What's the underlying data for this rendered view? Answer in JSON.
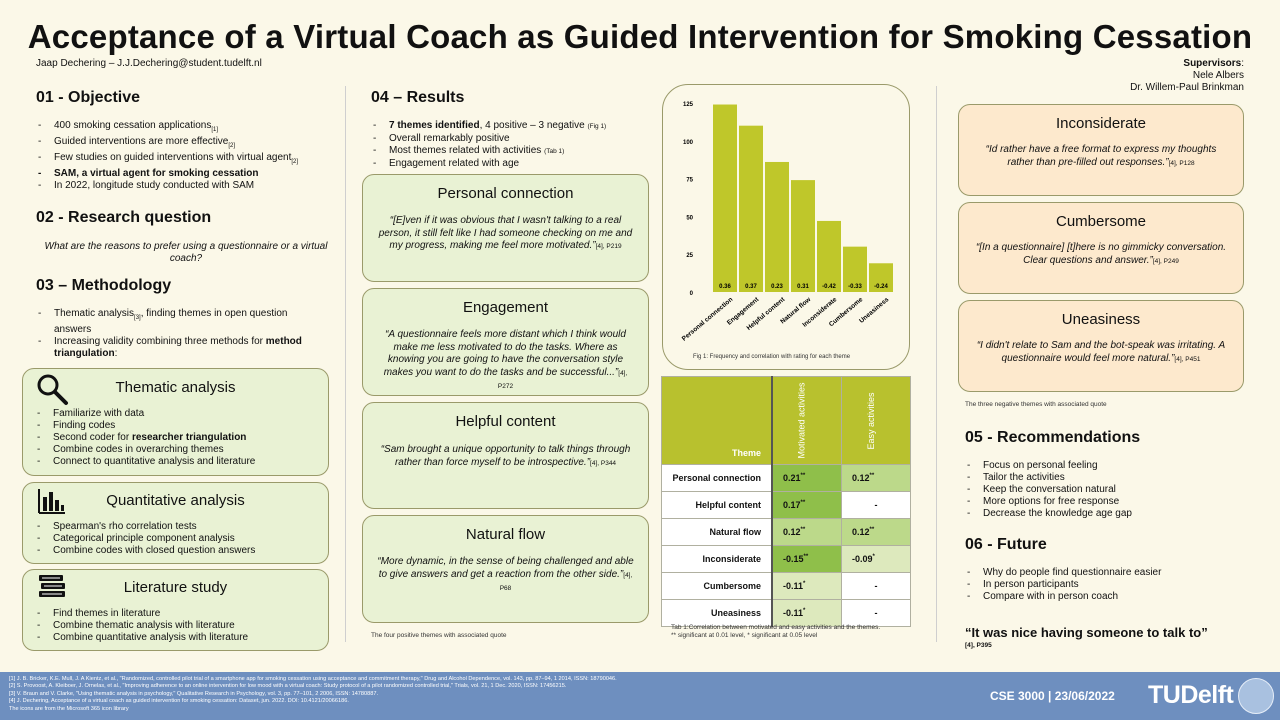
{
  "title": "Acceptance of a Virtual Coach as Guided Intervention for Smoking Cessation",
  "author": "Jaap Dechering – J.J.Dechering@student.tudelft.nl",
  "supervisors": {
    "label": "Supervisors",
    "names": [
      "Nele Albers",
      "Dr. Willem-Paul Brinkman"
    ]
  },
  "objective": {
    "heading": "01 - Objective",
    "items": [
      {
        "text": "400 smoking cessation applications",
        "ref": "[1]"
      },
      {
        "text": "Guided interventions are more effective",
        "ref": "[2]"
      },
      {
        "text": "Few studies on guided interventions with virtual agent",
        "ref": "[2]"
      },
      {
        "text": "SAM, a virtual agent for smoking cessation",
        "ref": ""
      },
      {
        "text": "In 2022,  longitude study conducted with SAM",
        "ref": ""
      }
    ]
  },
  "research_question": {
    "heading": "02 - Research question",
    "text": "What are the reasons to prefer using a questionnaire or a virtual coach?"
  },
  "methodology": {
    "heading": "03 – Methodology",
    "item1": "Thematic analysis",
    "item1_ref": "[3]",
    "item1_rest": ", finding themes in open question answers",
    "item2": "Increasing validity combining three methods for ",
    "item2_bold": "method triangulation",
    "item2_end": ":"
  },
  "thematic_box": {
    "title": "Thematic analysis",
    "items": [
      "Familiarize with data",
      "Finding codes",
      "Second coder for ",
      "Combine codes in overarching themes",
      "Connect to quantitative analysis and literature"
    ],
    "bold_part": "researcher triangulation"
  },
  "quantitative_box": {
    "title": "Quantitative analysis",
    "items": [
      "Spearman's rho correlation tests",
      "Categorical principle component analysis",
      "Combine codes with closed question answers"
    ]
  },
  "literature_box": {
    "title": "Literature study",
    "items": [
      "Find themes in literature",
      "Combine thematic analysis with literature",
      "Combine quantitative analysis with literature"
    ]
  },
  "results": {
    "heading": "04 – Results",
    "item1_bold": "7 themes identified",
    "item1_rest": ", 4 positive – 3 negative",
    "item1_ref": "(Fig 1)",
    "item2": "Overall remarkably positive",
    "item3": "Most themes related with activities",
    "item3_ref": "(Tab 1)",
    "item4": "Engagement related with age"
  },
  "positive_themes": [
    {
      "title": "Personal connection",
      "quote": "“[E]ven if it was obvious that I wasn't talking to a real person, it still felt like I had someone checking on me and my progress, making me feel  more motivated.”",
      "ref": "[4], P219"
    },
    {
      "title": "Engagement",
      "quote": "“A questionnaire feels more distant which I think would make me less motivated to do the tasks. Where as knowing you are going to have the conversation style makes you want to do the tasks and be successful...”",
      "ref": "[4], P272"
    },
    {
      "title": "Helpful content",
      "quote": "“Sam brought a unique opportunity to talk things through rather  than force  myself to be introspective.”",
      "ref": "[4], P344"
    },
    {
      "title": "Natural flow",
      "quote": "“More dynamic, in the sense of being challenged and able to give answers and get a reaction from the other side.”",
      "ref": "[4], P68"
    }
  ],
  "positive_caption": "The four positive themes with associated quote",
  "negative_themes": [
    {
      "title": "Inconsiderate",
      "quote": "“Id rather  have a free format to express my thoughts rather than pre-filled out responses.”",
      "ref": "[4], P128"
    },
    {
      "title": "Cumbersome",
      "quote": "“[In a questionnaire] [t]here is no gimmicky conversation. Clear questions and answer.”",
      "ref": "[4], P249"
    },
    {
      "title": "Uneasiness",
      "quote": "“I didn't relate to Sam and the bot-speak was irritating. A questionnaire would feel  more natural.”",
      "ref": "[4], P451"
    }
  ],
  "negative_caption": "The three negative themes with associated quote",
  "chart_data": {
    "type": "bar",
    "categories": [
      "Personal connection",
      "Engagement",
      "Helpful content",
      "Natural flow",
      "Inconsiderate",
      "Cumbersome",
      "Uneasiness"
    ],
    "values": [
      124,
      110,
      86,
      74,
      47,
      30,
      19
    ],
    "data_labels": [
      "0.36",
      "0.37",
      "0.23",
      "0.31",
      "-0.42",
      "-0.33",
      "-0.24"
    ],
    "yticks": [
      "0",
      "25",
      "50",
      "75",
      "100",
      "125"
    ],
    "ylim": [
      0,
      125
    ],
    "color": "#bfc72a",
    "caption": "Fig 1: Frequency and correlation with rating for each theme"
  },
  "table": {
    "header_theme": "Theme",
    "col1": "Motivated activities",
    "col2": "Easy activities",
    "rows": [
      {
        "theme": "Personal connection",
        "c1": "0.21",
        "c1sup": "**",
        "c2": "0.12",
        "c2sup": "**"
      },
      {
        "theme": "Helpful content",
        "c1": "0.17",
        "c1sup": "**",
        "c2": "-",
        "c2sup": ""
      },
      {
        "theme": "Natural flow",
        "c1": "0.12",
        "c1sup": "**",
        "c2": "0.12",
        "c2sup": "**"
      },
      {
        "theme": "Inconsiderate",
        "c1": "-0.15",
        "c1sup": "**",
        "c2": "-0.09",
        "c2sup": "*"
      },
      {
        "theme": "Cumbersome",
        "c1": "-0.11",
        "c1sup": "*",
        "c2": "-",
        "c2sup": ""
      },
      {
        "theme": "Uneasiness",
        "c1": "-0.11",
        "c1sup": "*",
        "c2": "-",
        "c2sup": ""
      }
    ],
    "caption1": "Tab 1:Correlation between motivated and easy activities and the themes.",
    "caption2": "** significant at 0.01 level, * significant at 0.05 level",
    "colors": {
      "header": "#b8c12e",
      "strong": "#8fbf4a",
      "mid": "#bcd98a",
      "light": "#dde9bd",
      "none": "#ffffff"
    }
  },
  "recommendations": {
    "heading": "05 - Recommendations",
    "items": [
      "Focus on personal feeling",
      "Tailor the activities",
      "Keep the conversation natural",
      "More options for free response",
      "Decrease the knowledge age gap"
    ]
  },
  "future": {
    "heading": "06 - Future",
    "items": [
      "Why do people find questionnaire easier",
      "In person participants",
      "Compare with in person coach"
    ]
  },
  "closing": {
    "quote": "“It was nice having someone  to talk to”",
    "ref": "[4], P395"
  },
  "footer": {
    "refs": [
      "[1] J. B. Bricker, K.E. Mull, J. A Kientz, et al., \"Randomized, controlled pilot trial of a smartphone app for smoking cessation using acceptance and commitment therapy,\" Drug and Alcohol Dependence, vol. 143, pp. 87–94, 1 2014, ISSN: 18790046.",
      "[2] S. Provoost, A. Kleiboer, J. Ornelas, et al., \"Improving adherence to an online intervention for low mood with a virtual coach: Study protocol of a pilot randomized controlled trial,\" Trials, vol. 21, 1 Dec. 2020, ISSN: 17456215.",
      "[3] V. Braun and V. Clarke, \"Using thematic analysis in psychology,\" Qualitative Research in Psychology, vol. 3, pp. 77–101, 2 2006, ISSN: 14780887.",
      "[4] J. Dechering, Acceptance of a virtual coach as guided intervention for smoking cessation: Dataset, jun. 2022. DOI: 10.4121/20066186.",
      "The icons are from the Microsoft 365 icon library"
    ],
    "course": "CSE 3000  |  23/06/2022",
    "brand": "TUDelft"
  },
  "icons": [
    "magnifier-icon",
    "bar-chart-icon",
    "books-icon"
  ]
}
